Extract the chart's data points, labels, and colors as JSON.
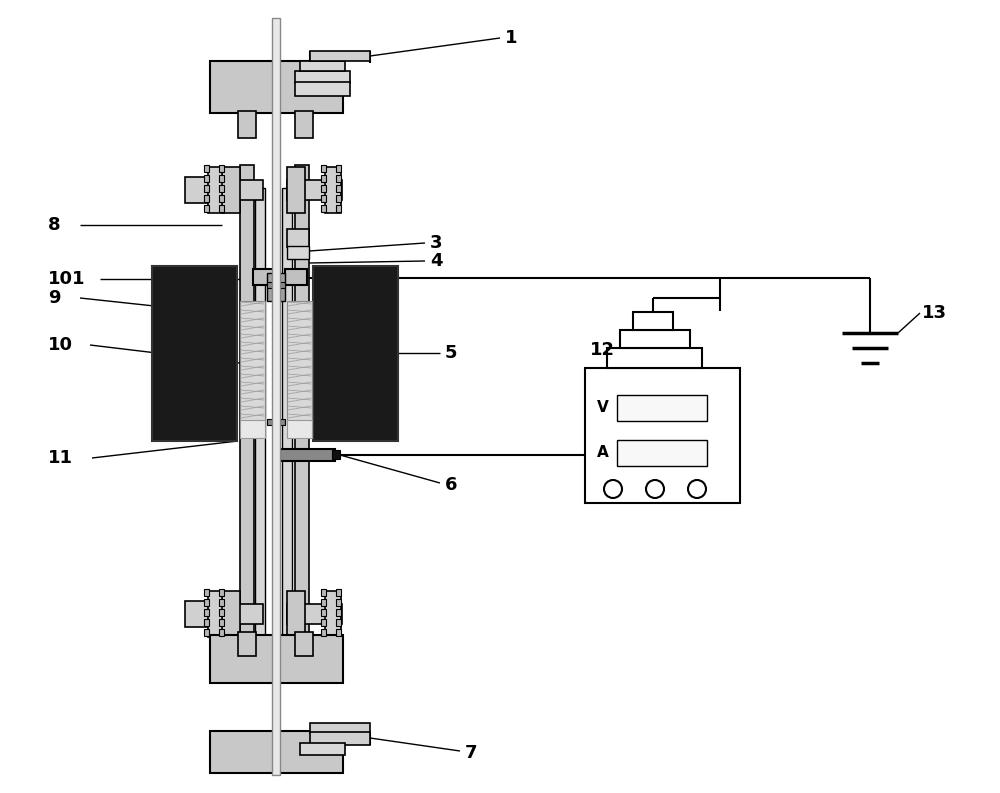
{
  "bg_color": "#ffffff",
  "line_color": "#000000",
  "gray_fill": "#c8c8c8",
  "light_gray": "#d8d8d8",
  "dark_fill": "#1a1a1a",
  "marble_light": "#d0d0d0",
  "marble_dark": "#a0a0a0",
  "label_fontsize": 13,
  "lw_main": 1.5
}
